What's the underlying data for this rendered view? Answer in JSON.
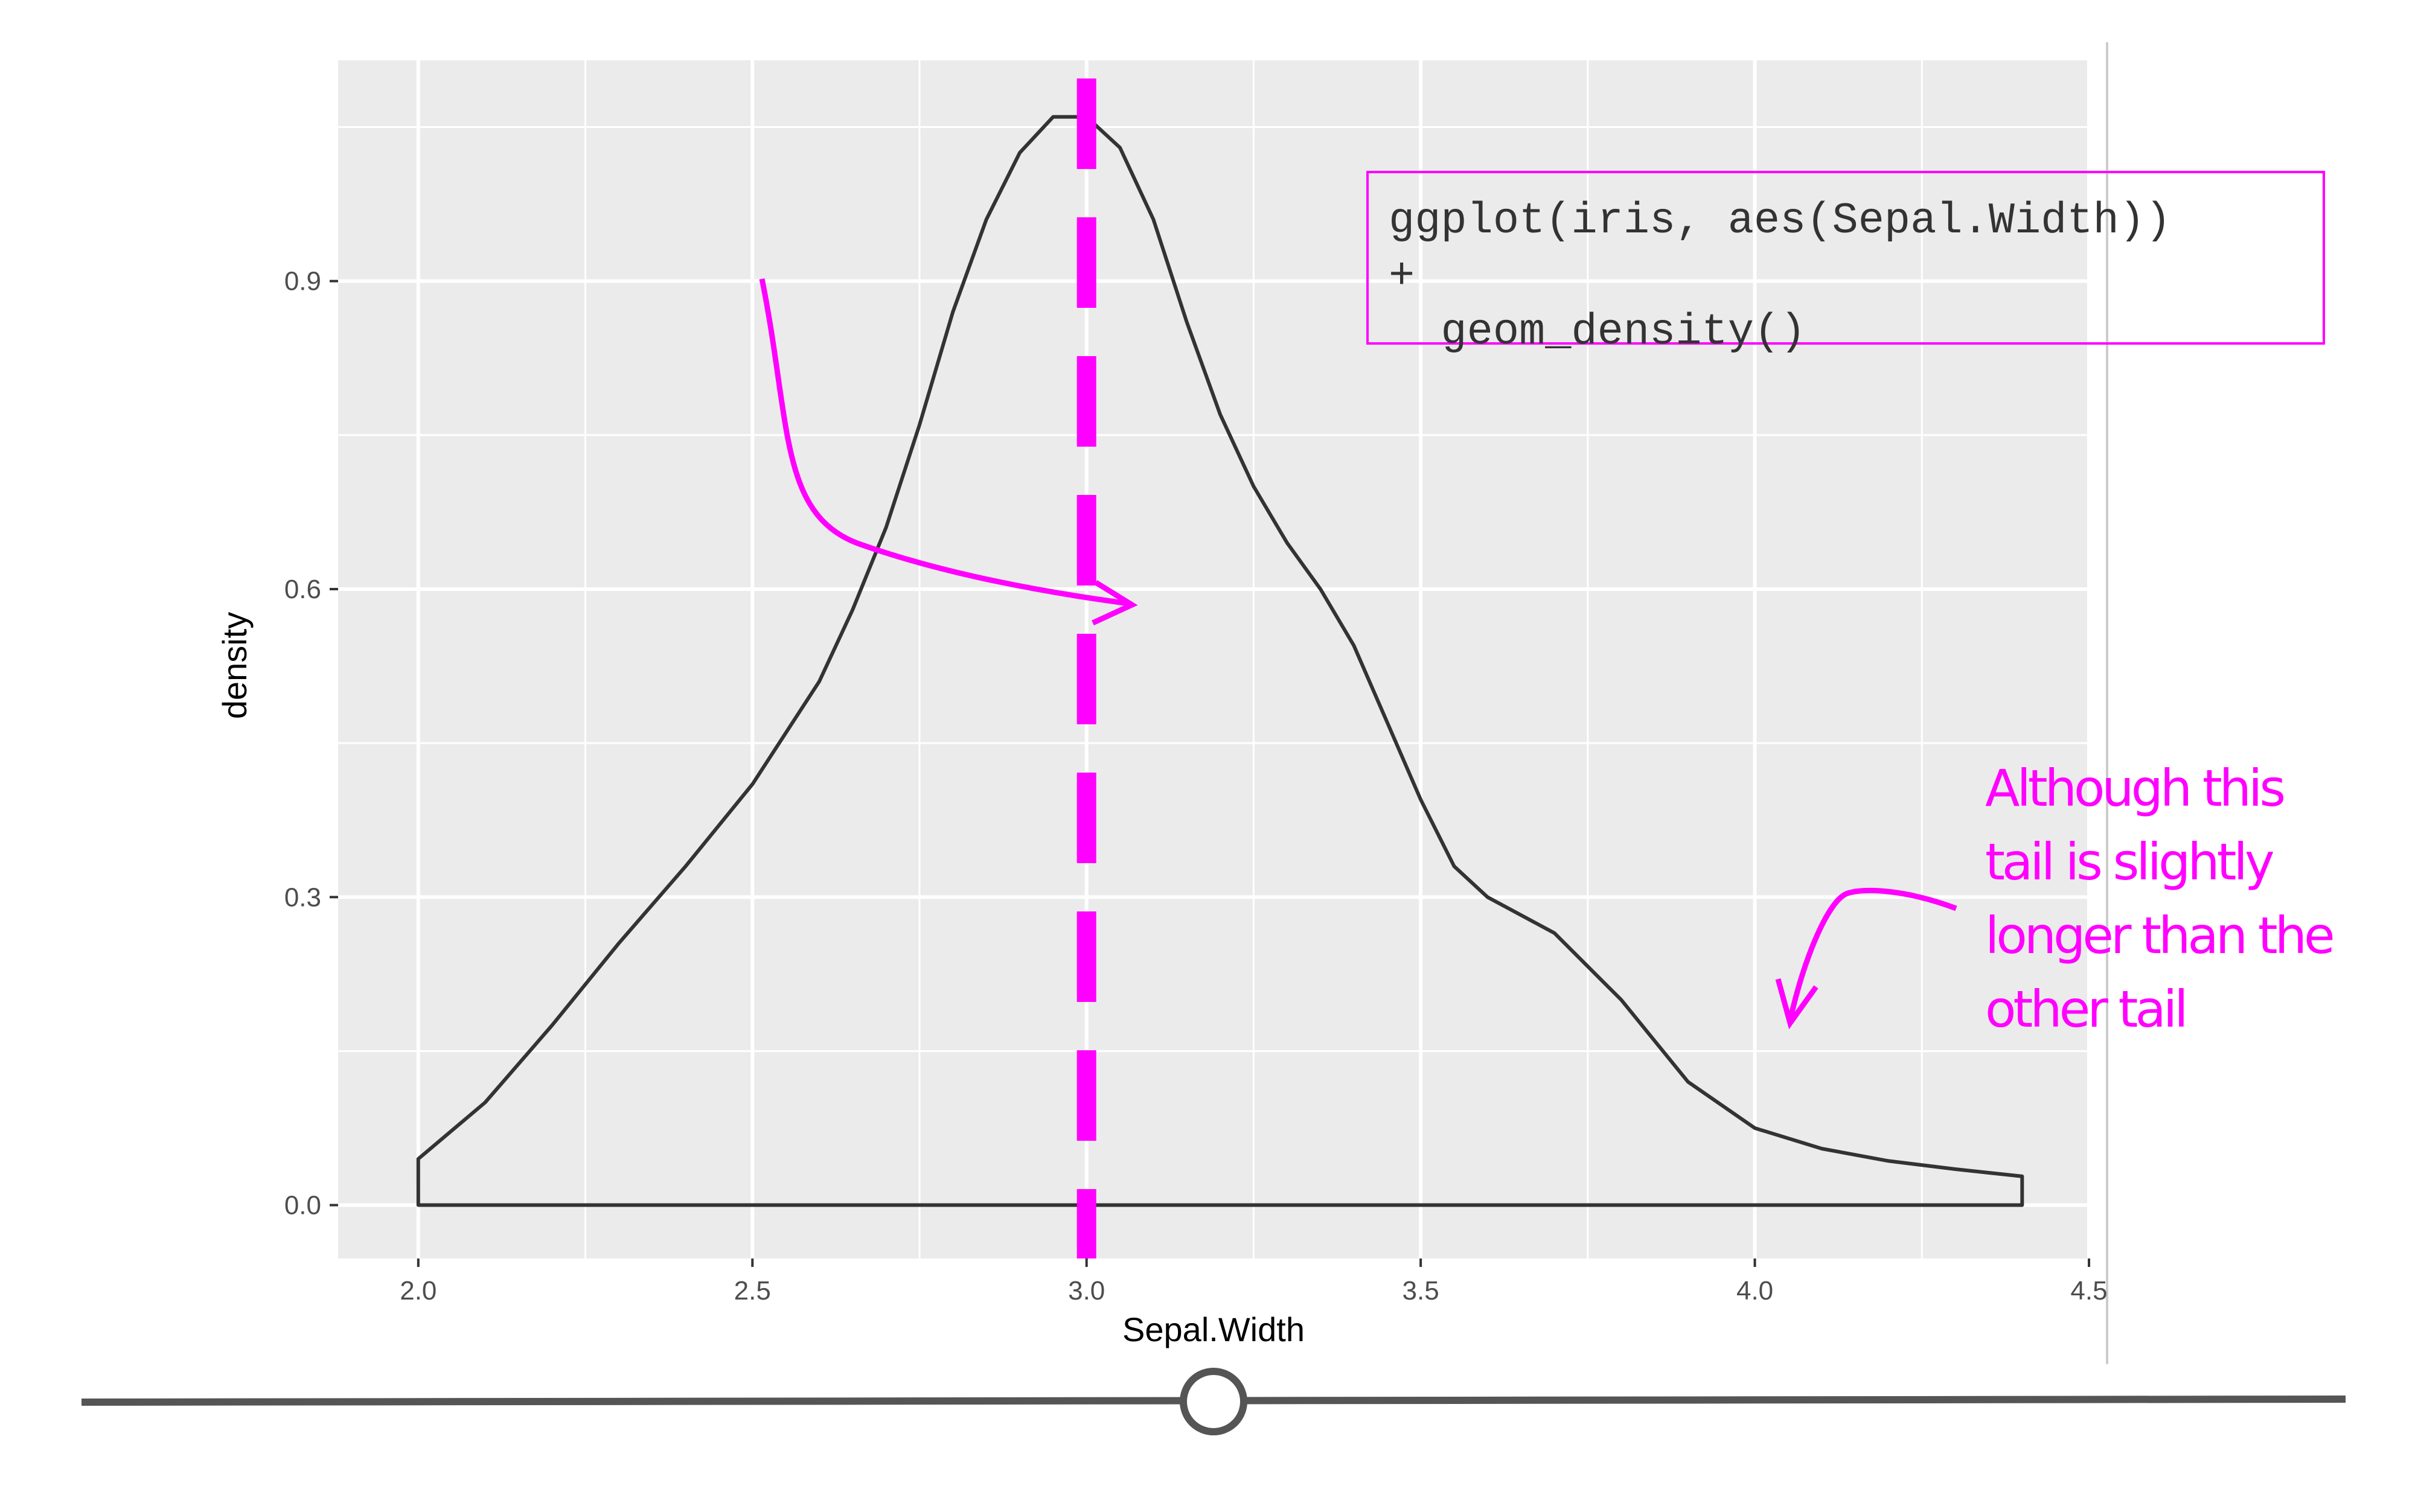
{
  "chart_data": {
    "type": "area",
    "xlabel": "Sepal.Width",
    "ylabel": "density",
    "xlim": [
      1.88,
      4.5
    ],
    "ylim": [
      -0.052,
      1.115
    ],
    "x_ticks": [
      "2.0",
      "2.5",
      "3.0",
      "3.5",
      "4.0",
      "4.5"
    ],
    "y_ticks": [
      "0.0",
      "0.3",
      "0.6",
      "0.9"
    ],
    "grid": true,
    "series": [
      {
        "x": [
          2.0,
          2.1,
          2.2,
          2.3,
          2.4,
          2.5,
          2.6,
          2.65,
          2.7,
          2.75,
          2.8,
          2.85,
          2.9,
          2.95,
          3.0,
          3.05,
          3.1,
          3.15,
          3.2,
          3.25,
          3.3,
          3.35,
          3.4,
          3.45,
          3.5,
          3.55,
          3.6,
          3.7,
          3.8,
          3.9,
          4.0,
          4.1,
          4.2,
          4.3,
          4.4
        ],
        "y": [
          0.045,
          0.1,
          0.175,
          0.255,
          0.33,
          0.41,
          0.51,
          0.58,
          0.66,
          0.76,
          0.87,
          0.96,
          1.025,
          1.06,
          1.06,
          1.03,
          0.96,
          0.86,
          0.77,
          0.7,
          0.645,
          0.6,
          0.545,
          0.47,
          0.395,
          0.33,
          0.3,
          0.265,
          0.2,
          0.12,
          0.075,
          0.055,
          0.043,
          0.035,
          0.028
        ]
      }
    ],
    "reference_line": {
      "x": 3.0,
      "color": "#ff00ff",
      "style": "dashed"
    }
  },
  "code_snippet": [
    "ggplot(iris, aes(Sepal.Width))",
    "+",
    "  geom_density()"
  ],
  "annotation": [
    "Although this",
    "tail is slightly",
    "longer than the",
    "other tail"
  ],
  "colors": {
    "panel": "#ebebeb",
    "grid": "#ffffff",
    "curve": "#333333",
    "accent": "#ff00ff",
    "slider": "#555555"
  },
  "slider": {
    "position": 0.5
  }
}
